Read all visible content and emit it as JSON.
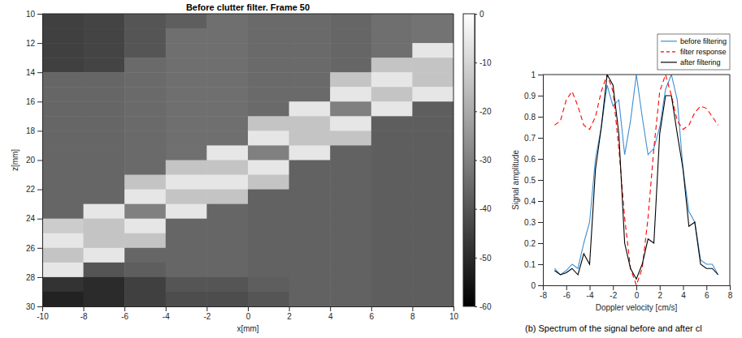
{
  "chart_data": [
    {
      "type": "heatmap",
      "title": "Before clutter filter. Frame 50",
      "x_label": "x[mm]",
      "y_label": "z[mm]",
      "xlim": [
        -10,
        10
      ],
      "xticks": [
        -10,
        -8,
        -6,
        -4,
        -2,
        0,
        2,
        4,
        6,
        8,
        10
      ],
      "ylim": [
        30,
        10
      ],
      "yticks": [
        10,
        12,
        14,
        16,
        18,
        20,
        22,
        24,
        26,
        28,
        30
      ],
      "x": [
        -9,
        -7,
        -5,
        -3,
        -1,
        1,
        3,
        5,
        7,
        9
      ],
      "y": [
        10.5,
        11.5,
        12.5,
        13.5,
        14.5,
        15.5,
        16.5,
        17.5,
        18.5,
        19.5,
        20.5,
        21.5,
        22.5,
        23.5,
        24.5,
        25.5,
        26.5,
        27.5,
        28.5,
        29.5
      ],
      "values": [
        [
          -45,
          -44,
          -40,
          -38,
          -34,
          -35,
          -35,
          -36,
          -34,
          -33
        ],
        [
          -45,
          -44,
          -40,
          -34,
          -34,
          -35,
          -35,
          -36,
          -34,
          -33
        ],
        [
          -45,
          -44,
          -40,
          -34,
          -34,
          -35,
          -35,
          -36,
          -34,
          -6
        ],
        [
          -45,
          -44,
          -35,
          -34,
          -34,
          -35,
          -35,
          -36,
          -14,
          -14
        ],
        [
          -36,
          -36,
          -35,
          -34,
          -34,
          -35,
          -35,
          -14,
          -6,
          -14
        ],
        [
          -36,
          -36,
          -35,
          -34,
          -34,
          -35,
          -35,
          -6,
          -14,
          -6
        ],
        [
          -36,
          -36,
          -35,
          -34,
          -34,
          -35,
          -6,
          -30,
          -6,
          -38
        ],
        [
          -36,
          -36,
          -35,
          -34,
          -34,
          -14,
          -14,
          -6,
          -38,
          -38
        ],
        [
          -36,
          -36,
          -35,
          -34,
          -34,
          -6,
          -14,
          -14,
          -38,
          -38
        ],
        [
          -36,
          -36,
          -35,
          -34,
          -6,
          -30,
          -6,
          -37,
          -38,
          -38
        ],
        [
          -36,
          -36,
          -35,
          -14,
          -14,
          -6,
          -37,
          -37,
          -38,
          -38
        ],
        [
          -36,
          -36,
          -14,
          -6,
          -6,
          -14,
          -37,
          -37,
          -38,
          -38
        ],
        [
          -36,
          -36,
          -6,
          -14,
          -14,
          -37,
          -37,
          -37,
          -38,
          -38
        ],
        [
          -36,
          -6,
          -30,
          -6,
          -36,
          -37,
          -37,
          -37,
          -38,
          -38
        ],
        [
          -12,
          -14,
          -6,
          -36,
          -36,
          -37,
          -37,
          -37,
          -38,
          -38
        ],
        [
          -6,
          -14,
          -14,
          -36,
          -36,
          -37,
          -37,
          -37,
          -38,
          -38
        ],
        [
          -14,
          -6,
          -36,
          -36,
          -36,
          -37,
          -37,
          -37,
          -38,
          -38
        ],
        [
          -6,
          -40,
          -38,
          -36,
          -36,
          -37,
          -37,
          -37,
          -38,
          -38
        ],
        [
          -48,
          -50,
          -45,
          -40,
          -40,
          -38,
          -37,
          -37,
          -38,
          -38
        ],
        [
          -52,
          -50,
          -45,
          -42,
          -42,
          -40,
          -37,
          -37,
          -38,
          -38
        ]
      ],
      "zlim": [
        -60,
        0
      ],
      "zticks": [
        0,
        -10,
        -20,
        -30,
        -40,
        -50,
        -60
      ]
    },
    {
      "type": "line",
      "x_label": "Doppler velocity [cm/s]",
      "y_label": "Signal amplitude",
      "xlim": [
        -8,
        8
      ],
      "xticks": [
        -8,
        -6,
        -4,
        -2,
        0,
        2,
        4,
        6,
        8
      ],
      "ylim": [
        0,
        1
      ],
      "yticks": [
        0,
        0.1,
        0.2,
        0.3,
        0.4,
        0.5,
        0.6,
        0.7,
        0.8,
        0.9,
        1
      ],
      "legend": "top-right",
      "annotations": [
        "(b) Spectrum of the signal before and after cl"
      ],
      "x": [
        -7,
        -6.5,
        -6,
        -5.5,
        -5,
        -4.5,
        -4,
        -3.5,
        -3,
        -2.5,
        -2,
        -1.5,
        -1,
        -0.5,
        0,
        0.5,
        1,
        1.5,
        2,
        2.5,
        3,
        3.5,
        4,
        4.5,
        5,
        5.5,
        6,
        6.5,
        7
      ],
      "series": [
        {
          "name": "before filtering",
          "color": "#3d8fd1",
          "line_style": "solid",
          "values": [
            0.08,
            0.05,
            0.07,
            0.1,
            0.08,
            0.2,
            0.3,
            0.6,
            0.75,
            0.95,
            0.85,
            0.88,
            0.62,
            0.78,
            1.0,
            0.8,
            0.62,
            0.65,
            0.75,
            0.93,
            1.0,
            0.88,
            0.55,
            0.35,
            0.3,
            0.12,
            0.1,
            0.1,
            0.05
          ]
        },
        {
          "name": "filter response",
          "color": "#ff0000",
          "line_style": "dashed",
          "values": [
            0.76,
            0.78,
            0.88,
            0.92,
            0.85,
            0.76,
            0.74,
            0.8,
            0.92,
            1.0,
            0.92,
            0.65,
            0.32,
            0.08,
            0.0,
            0.08,
            0.32,
            0.65,
            0.92,
            1.0,
            0.9,
            0.78,
            0.74,
            0.76,
            0.82,
            0.85,
            0.84,
            0.8,
            0.76
          ]
        },
        {
          "name": "after filtering",
          "color": "#000000",
          "line_style": "solid",
          "values": [
            0.07,
            0.05,
            0.06,
            0.08,
            0.05,
            0.15,
            0.1,
            0.55,
            0.75,
            1.0,
            0.95,
            0.72,
            0.2,
            0.08,
            0.03,
            0.1,
            0.22,
            0.2,
            0.72,
            0.9,
            0.9,
            0.72,
            0.55,
            0.28,
            0.3,
            0.1,
            0.08,
            0.08,
            0.05
          ]
        }
      ]
    }
  ]
}
